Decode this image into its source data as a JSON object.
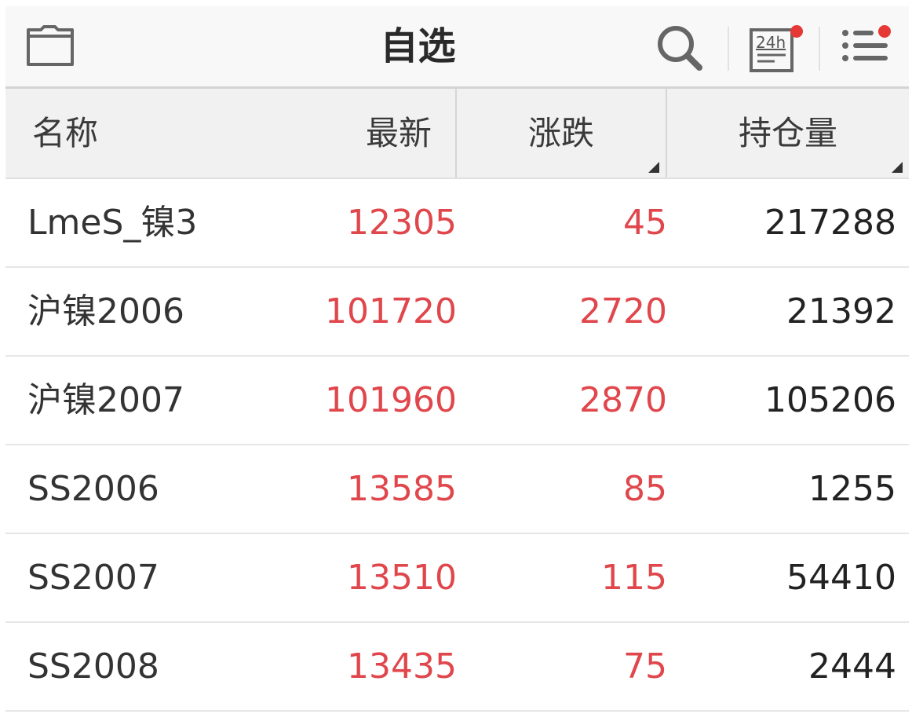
{
  "header": {
    "title": "自选",
    "icons": [
      "folder-icon",
      "search-icon",
      "news-24h-icon",
      "list-menu-icon"
    ],
    "news_icon_text": "24h",
    "badge_color": "#e53935"
  },
  "columns": {
    "name": "名称",
    "latest": "最新",
    "change": "涨跌",
    "open_interest": "持仓量"
  },
  "colors": {
    "up": "#e0474c",
    "text": "#333333"
  },
  "rows": [
    {
      "name": "LmeS_镍3",
      "latest": "12305",
      "change": "45",
      "open_interest": "217288"
    },
    {
      "name": "沪镍2006",
      "latest": "101720",
      "change": "2720",
      "open_interest": "21392"
    },
    {
      "name": "沪镍2007",
      "latest": "101960",
      "change": "2870",
      "open_interest": "105206"
    },
    {
      "name": "SS2006",
      "latest": "13585",
      "change": "85",
      "open_interest": "1255"
    },
    {
      "name": "SS2007",
      "latest": "13510",
      "change": "115",
      "open_interest": "54410"
    },
    {
      "name": "SS2008",
      "latest": "13435",
      "change": "75",
      "open_interest": "2444"
    }
  ]
}
